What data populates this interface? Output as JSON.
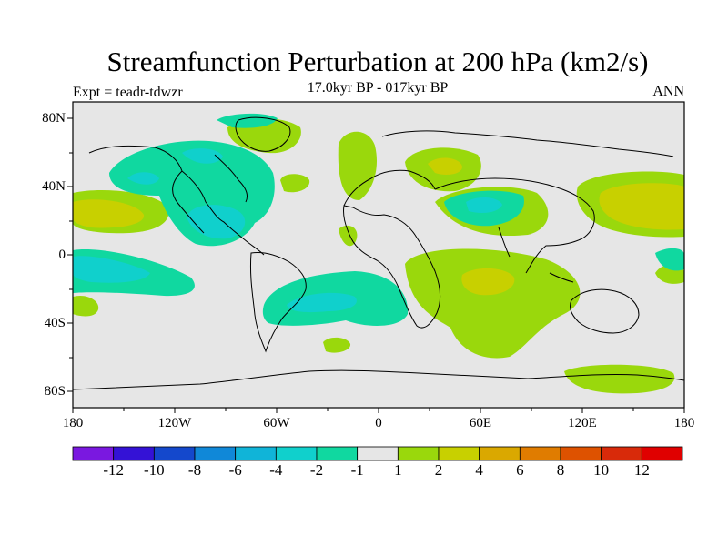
{
  "title": "Streamfunction Perturbation at 200 hPa (km2/s)",
  "subtitle": "17.0kyr BP - 017kyr BP",
  "expt": "Expt = teadr-tdwzr",
  "period": "ANN",
  "lat_labels": [
    "80N",
    "40N",
    "0",
    "40S",
    "80S"
  ],
  "lon_labels": [
    "180",
    "120W",
    "60W",
    "0",
    "60E",
    "120E",
    "180"
  ],
  "colorbar": {
    "labels": [
      "-12",
      "-10",
      "-8",
      "-6",
      "-4",
      "-2",
      "-1",
      "1",
      "2",
      "4",
      "6",
      "8",
      "10",
      "12"
    ],
    "colors": [
      "#7a18e0",
      "#3412d6",
      "#1448cc",
      "#1088d8",
      "#10b4d8",
      "#10d0cc",
      "#10d8a0",
      "#e6e6e6",
      "#9ad80c",
      "#c8d000",
      "#daa800",
      "#e07c00",
      "#de5200",
      "#d82a0a",
      "#e00000"
    ]
  },
  "colors": {
    "background": "#e6e6e6",
    "neg1": "#10d8a0",
    "neg2": "#10d0cc",
    "pos1": "#9ad80c",
    "pos2": "#c8d000"
  }
}
